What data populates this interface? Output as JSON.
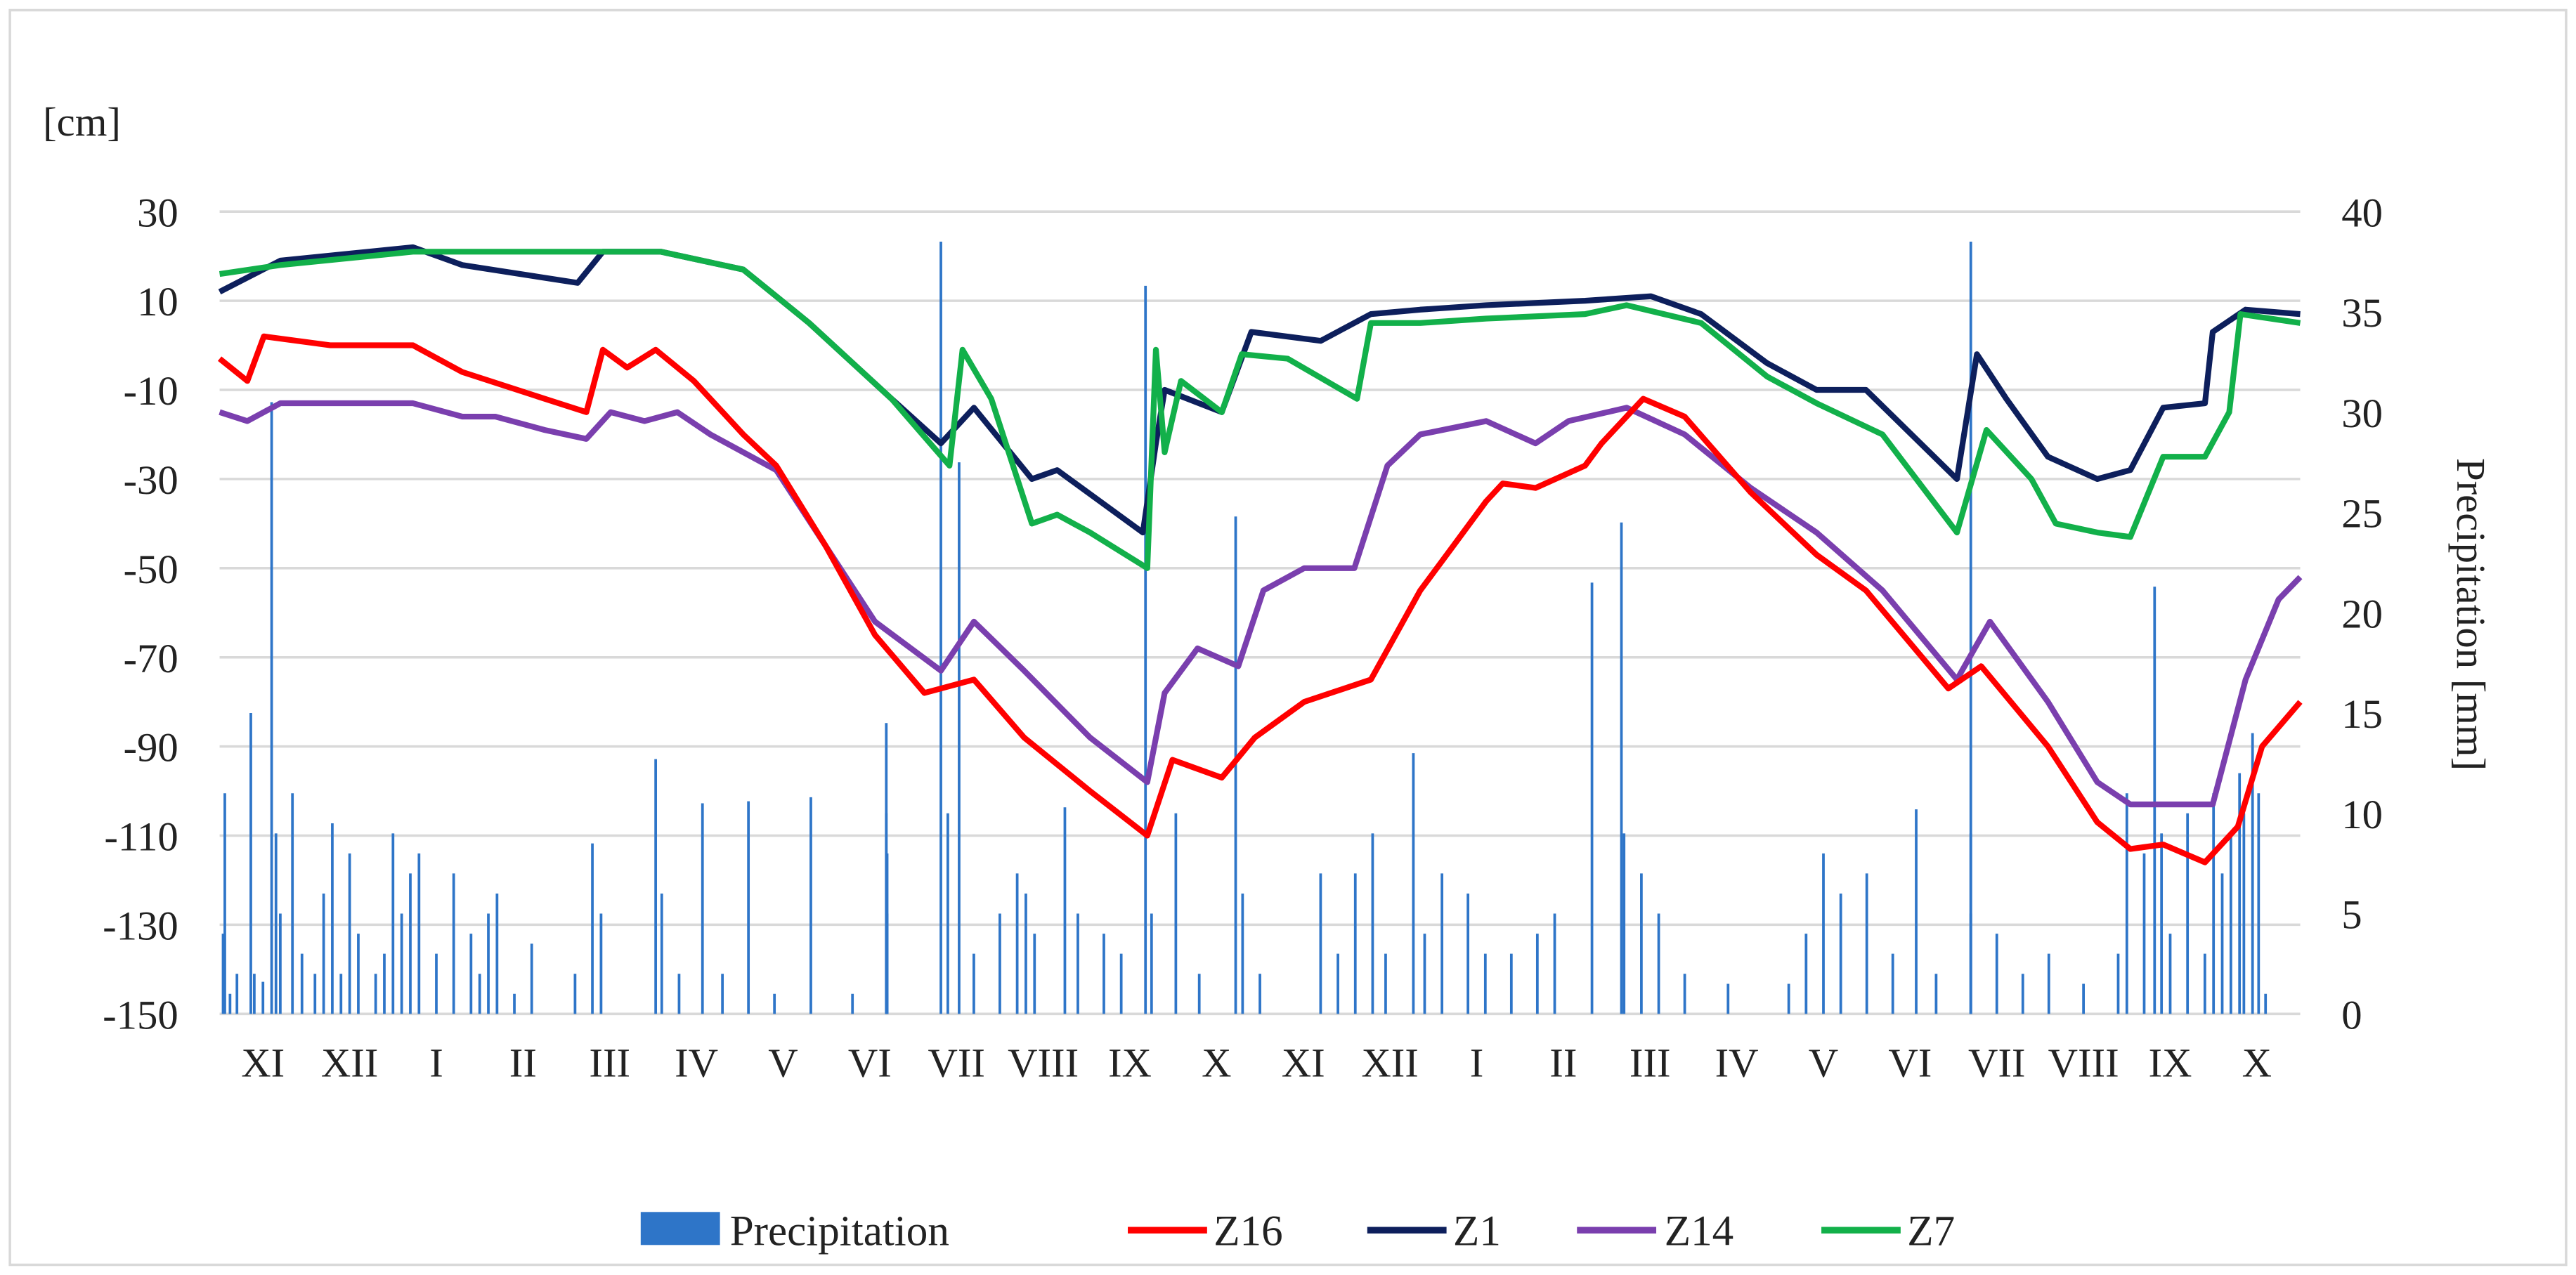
{
  "chart_data": {
    "type": "line",
    "title": "",
    "ylabel": "[cm]",
    "y2label": "Precipitation [mm]",
    "ylim": [
      -150,
      30
    ],
    "y2lim": [
      0,
      40
    ],
    "yticks": [
      "30",
      "10",
      "-10",
      "-30",
      "-50",
      "-70",
      "-90",
      "-110",
      "-130",
      "-150"
    ],
    "ytick_values": [
      30,
      10,
      -10,
      -30,
      -50,
      -70,
      -90,
      -110,
      -130,
      -150
    ],
    "y2ticks": [
      "40",
      "35",
      "30",
      "25",
      "20",
      "15",
      "10",
      "5",
      "0"
    ],
    "y2tick_values": [
      40,
      35,
      30,
      25,
      20,
      15,
      10,
      5,
      0
    ],
    "xlim_months": [
      0,
      24
    ],
    "categories": [
      "XI",
      "XII",
      "I",
      "II",
      "III",
      "IV",
      "V",
      "VI",
      "VII",
      "VIII",
      "IX",
      "X",
      "XI",
      "XII",
      "I",
      "II",
      "III",
      "IV",
      "V",
      "VI",
      "VII",
      "VIII",
      "IX",
      "X"
    ],
    "grid": true,
    "legend_position": "bottom",
    "legend": [
      "Precipitation",
      "Z16",
      "Z1",
      "Z14",
      "Z7"
    ],
    "colors": {
      "Precipitation": "#2e75c8",
      "Z16": "#ff0000",
      "Z1": "#0d1f5c",
      "Z14": "#7a3fae",
      "Z7": "#12b04a"
    },
    "series": [
      {
        "name": "Z16",
        "axis": "left",
        "points": [
          [
            0,
            -3
          ],
          [
            0.32,
            -8
          ],
          [
            0.51,
            2
          ],
          [
            1.28,
            0
          ],
          [
            2.23,
            0
          ],
          [
            2.8,
            -6
          ],
          [
            3.75,
            -12
          ],
          [
            4.23,
            -15
          ],
          [
            4.42,
            -1
          ],
          [
            4.7,
            -5
          ],
          [
            5.03,
            -1
          ],
          [
            5.47,
            -8
          ],
          [
            6.04,
            -20
          ],
          [
            6.42,
            -27
          ],
          [
            6.99,
            -45
          ],
          [
            7.56,
            -65
          ],
          [
            8.13,
            -78
          ],
          [
            8.7,
            -75
          ],
          [
            9.28,
            -88
          ],
          [
            10.04,
            -100
          ],
          [
            10.7,
            -110
          ],
          [
            10.99,
            -93
          ],
          [
            11.56,
            -97
          ],
          [
            11.94,
            -88
          ],
          [
            12.51,
            -80
          ],
          [
            13.28,
            -75
          ],
          [
            13.85,
            -55
          ],
          [
            14.23,
            -45
          ],
          [
            14.61,
            -35
          ],
          [
            14.8,
            -31
          ],
          [
            15.18,
            -32
          ],
          [
            15.75,
            -27
          ],
          [
            15.94,
            -22
          ],
          [
            16.42,
            -12
          ],
          [
            16.9,
            -16
          ],
          [
            17.66,
            -33
          ],
          [
            18.42,
            -47
          ],
          [
            18.99,
            -55
          ],
          [
            19.94,
            -77
          ],
          [
            20.32,
            -72
          ],
          [
            21.09,
            -90
          ],
          [
            21.66,
            -107
          ],
          [
            22.04,
            -113
          ],
          [
            22.42,
            -112
          ],
          [
            22.9,
            -116
          ],
          [
            23.28,
            -108
          ],
          [
            23.56,
            -90
          ],
          [
            24,
            -80
          ]
        ]
      },
      {
        "name": "Z1",
        "axis": "left",
        "points": [
          [
            0,
            12
          ],
          [
            0.7,
            19
          ],
          [
            2.23,
            22
          ],
          [
            2.8,
            18
          ],
          [
            4.13,
            14
          ],
          [
            4.42,
            21
          ],
          [
            5.09,
            21
          ],
          [
            6.04,
            17
          ],
          [
            6.8,
            5
          ],
          [
            7.75,
            -12
          ],
          [
            8.32,
            -22
          ],
          [
            8.7,
            -14
          ],
          [
            9.37,
            -30
          ],
          [
            9.66,
            -28
          ],
          [
            10.65,
            -42
          ],
          [
            10.8,
            -22
          ],
          [
            10.9,
            -10
          ],
          [
            11.56,
            -15
          ],
          [
            11.9,
            3
          ],
          [
            12.7,
            1
          ],
          [
            13.28,
            7
          ],
          [
            13.85,
            8
          ],
          [
            14.61,
            9
          ],
          [
            15.75,
            10
          ],
          [
            16.51,
            11
          ],
          [
            17.09,
            7
          ],
          [
            17.85,
            -4
          ],
          [
            18.42,
            -10
          ],
          [
            18.99,
            -10
          ],
          [
            20.04,
            -30
          ],
          [
            20.27,
            -2
          ],
          [
            20.61,
            -12
          ],
          [
            21.09,
            -25
          ],
          [
            21.66,
            -30
          ],
          [
            22.04,
            -28
          ],
          [
            22.42,
            -14
          ],
          [
            22.9,
            -13
          ],
          [
            22.99,
            3
          ],
          [
            23.37,
            8
          ],
          [
            24,
            7
          ]
        ]
      },
      {
        "name": "Z14",
        "axis": "left",
        "points": [
          [
            0,
            -15
          ],
          [
            0.32,
            -17
          ],
          [
            0.7,
            -13
          ],
          [
            1.47,
            -13
          ],
          [
            2.23,
            -13
          ],
          [
            2.8,
            -16
          ],
          [
            3.18,
            -16
          ],
          [
            3.75,
            -19
          ],
          [
            4.23,
            -21
          ],
          [
            4.51,
            -15
          ],
          [
            4.9,
            -17
          ],
          [
            5.28,
            -15
          ],
          [
            5.66,
            -20
          ],
          [
            6.42,
            -28
          ],
          [
            6.99,
            -45
          ],
          [
            7.56,
            -62
          ],
          [
            8.32,
            -73
          ],
          [
            8.7,
            -62
          ],
          [
            9.28,
            -73
          ],
          [
            10.04,
            -88
          ],
          [
            10.7,
            -98
          ],
          [
            10.9,
            -78
          ],
          [
            11.28,
            -68
          ],
          [
            11.75,
            -72
          ],
          [
            12.04,
            -55
          ],
          [
            12.51,
            -50
          ],
          [
            13.09,
            -50
          ],
          [
            13.47,
            -27
          ],
          [
            13.85,
            -20
          ],
          [
            14.61,
            -17
          ],
          [
            15.18,
            -22
          ],
          [
            15.56,
            -17
          ],
          [
            16.23,
            -14
          ],
          [
            16.9,
            -20
          ],
          [
            17.66,
            -32
          ],
          [
            18.42,
            -42
          ],
          [
            19.18,
            -55
          ],
          [
            20.04,
            -75
          ],
          [
            20.42,
            -62
          ],
          [
            21.09,
            -80
          ],
          [
            21.66,
            -98
          ],
          [
            22.04,
            -103
          ],
          [
            22.61,
            -103
          ],
          [
            22.99,
            -103
          ],
          [
            23.37,
            -75
          ],
          [
            23.75,
            -57
          ],
          [
            24,
            -52
          ]
        ]
      },
      {
        "name": "Z7",
        "axis": "left",
        "points": [
          [
            0,
            16
          ],
          [
            0.7,
            18
          ],
          [
            2.23,
            21
          ],
          [
            5.09,
            21
          ],
          [
            6.04,
            17
          ],
          [
            6.8,
            5
          ],
          [
            7.75,
            -12
          ],
          [
            8.42,
            -27
          ],
          [
            8.57,
            -1
          ],
          [
            8.9,
            -12
          ],
          [
            9.37,
            -40
          ],
          [
            9.66,
            -38
          ],
          [
            10.04,
            -42
          ],
          [
            10.7,
            -50
          ],
          [
            10.8,
            -1
          ],
          [
            10.9,
            -24
          ],
          [
            11.09,
            -8
          ],
          [
            11.56,
            -15
          ],
          [
            11.79,
            -2
          ],
          [
            12.32,
            -3
          ],
          [
            13.12,
            -12
          ],
          [
            13.28,
            5
          ],
          [
            13.85,
            5
          ],
          [
            14.61,
            6
          ],
          [
            15.75,
            7
          ],
          [
            16.23,
            9
          ],
          [
            17.09,
            5
          ],
          [
            17.85,
            -7
          ],
          [
            18.42,
            -13
          ],
          [
            19.18,
            -20
          ],
          [
            20.04,
            -42
          ],
          [
            20.38,
            -19
          ],
          [
            20.9,
            -30
          ],
          [
            21.18,
            -40
          ],
          [
            21.66,
            -42
          ],
          [
            22.04,
            -43
          ],
          [
            22.42,
            -25
          ],
          [
            22.9,
            -25
          ],
          [
            23.18,
            -15
          ],
          [
            23.31,
            7
          ],
          [
            24,
            5
          ]
        ]
      }
    ],
    "precipitation": {
      "name": "Precipitation",
      "axis": "right",
      "points": [
        [
          0.06,
          11
        ],
        [
          0.04,
          4
        ],
        [
          0.12,
          1
        ],
        [
          0.2,
          2
        ],
        [
          0.36,
          15
        ],
        [
          0.4,
          2
        ],
        [
          0.5,
          1.6
        ],
        [
          0.6,
          30.5
        ],
        [
          0.65,
          9
        ],
        [
          0.7,
          5
        ],
        [
          0.84,
          11
        ],
        [
          0.95,
          3
        ],
        [
          1.1,
          2
        ],
        [
          1.2,
          6
        ],
        [
          1.3,
          9.5
        ],
        [
          1.4,
          2
        ],
        [
          1.5,
          8
        ],
        [
          1.6,
          4
        ],
        [
          1.8,
          2
        ],
        [
          1.9,
          3
        ],
        [
          2.0,
          9
        ],
        [
          2.1,
          5
        ],
        [
          2.2,
          7
        ],
        [
          2.3,
          8
        ],
        [
          2.5,
          3
        ],
        [
          2.7,
          7
        ],
        [
          2.9,
          4
        ],
        [
          3.0,
          2
        ],
        [
          3.1,
          5
        ],
        [
          3.2,
          6
        ],
        [
          3.4,
          1
        ],
        [
          3.6,
          3.5
        ],
        [
          4.1,
          2
        ],
        [
          4.3,
          8.5
        ],
        [
          4.4,
          5
        ],
        [
          5.03,
          12.7
        ],
        [
          5.1,
          6
        ],
        [
          5.3,
          2
        ],
        [
          5.57,
          10.5
        ],
        [
          5.8,
          2
        ],
        [
          6.1,
          10.6
        ],
        [
          6.4,
          1
        ],
        [
          6.82,
          10.8
        ],
        [
          7.3,
          1
        ],
        [
          7.7,
          1
        ],
        [
          7.7,
          8
        ],
        [
          7.7,
          1
        ],
        [
          7.69,
          10
        ],
        [
          7.7,
          5
        ],
        [
          7.69,
          14.5
        ],
        [
          8.32,
          38.5
        ],
        [
          8.4,
          10
        ],
        [
          8.53,
          27.5
        ],
        [
          8.7,
          3
        ],
        [
          9.0,
          5
        ],
        [
          9.2,
          7
        ],
        [
          9.3,
          6
        ],
        [
          9.4,
          4
        ],
        [
          9.75,
          10.3
        ],
        [
          9.9,
          5
        ],
        [
          10.2,
          4
        ],
        [
          10.4,
          3
        ],
        [
          10.68,
          36.3
        ],
        [
          10.75,
          5
        ],
        [
          11.03,
          10
        ],
        [
          11.3,
          2
        ],
        [
          11.72,
          24.8
        ],
        [
          11.8,
          6
        ],
        [
          12.0,
          2
        ],
        [
          12.7,
          7
        ],
        [
          12.9,
          3
        ],
        [
          13.1,
          7
        ],
        [
          13.3,
          9
        ],
        [
          13.45,
          3
        ],
        [
          13.77,
          13
        ],
        [
          13.9,
          4
        ],
        [
          14.1,
          7
        ],
        [
          14.4,
          6
        ],
        [
          14.6,
          3
        ],
        [
          14.9,
          3
        ],
        [
          15.2,
          4
        ],
        [
          15.4,
          5
        ],
        [
          15.83,
          21.5
        ],
        [
          16.17,
          24.5
        ],
        [
          16.2,
          9
        ],
        [
          16.4,
          7
        ],
        [
          16.6,
          5
        ],
        [
          16.9,
          2
        ],
        [
          17.4,
          1.5
        ],
        [
          18.1,
          1.5
        ],
        [
          18.3,
          4
        ],
        [
          18.5,
          8
        ],
        [
          18.7,
          6
        ],
        [
          19.0,
          7
        ],
        [
          19.3,
          3
        ],
        [
          19.57,
          10.2
        ],
        [
          19.8,
          2
        ],
        [
          20.2,
          9
        ],
        [
          20.2,
          5
        ],
        [
          20.2,
          38.5
        ],
        [
          20.5,
          4
        ],
        [
          20.8,
          2
        ],
        [
          21.1,
          3
        ],
        [
          21.5,
          1.5
        ],
        [
          21.9,
          3
        ],
        [
          22.0,
          11
        ],
        [
          22.2,
          8
        ],
        [
          22.32,
          21.3
        ],
        [
          22.4,
          9
        ],
        [
          22.5,
          4
        ],
        [
          22.7,
          10
        ],
        [
          22.9,
          3
        ],
        [
          23.0,
          11
        ],
        [
          23.1,
          7
        ],
        [
          23.2,
          9
        ],
        [
          23.3,
          12
        ],
        [
          23.35,
          10
        ],
        [
          23.45,
          14
        ],
        [
          23.52,
          11
        ],
        [
          23.6,
          1
        ]
      ]
    }
  }
}
